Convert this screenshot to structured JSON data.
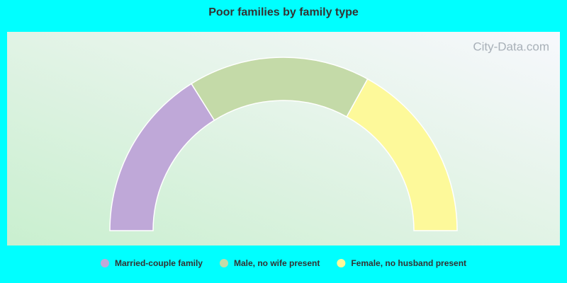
{
  "chart_data": {
    "type": "half-donut",
    "title": "Poor families by family type",
    "categories": [
      "Married-couple family",
      "Male, no wife present",
      "Female, no husband present"
    ],
    "values": [
      32.2,
      33.9,
      33.9
    ],
    "colors": [
      "#bfa8d8",
      "#c4daa8",
      "#fdf99a"
    ],
    "watermark": "City-Data.com"
  }
}
